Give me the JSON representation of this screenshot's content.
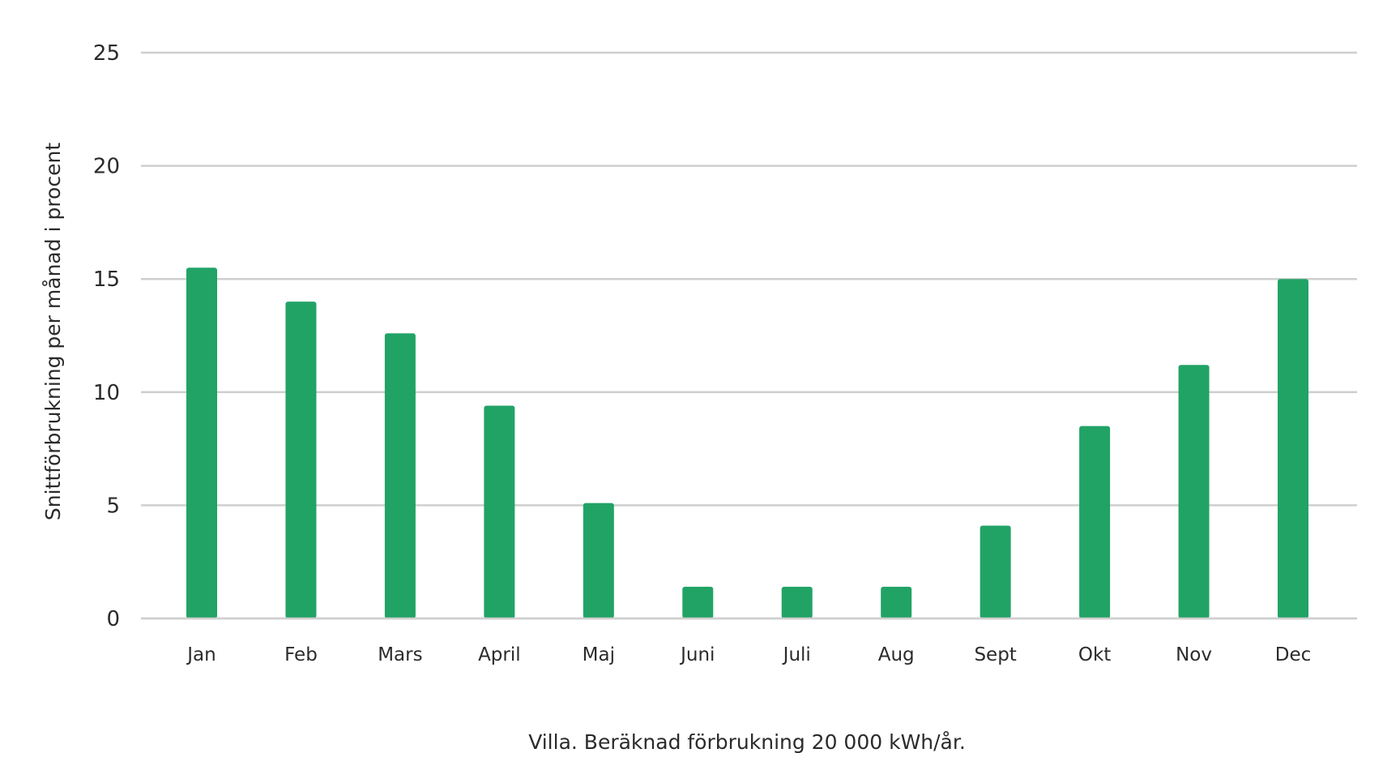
{
  "chart_data": {
    "type": "bar",
    "categories": [
      "Jan",
      "Feb",
      "Mars",
      "April",
      "Maj",
      "Juni",
      "Juli",
      "Aug",
      "Sept",
      "Okt",
      "Nov",
      "Dec"
    ],
    "series": [
      {
        "values": [
          15.5,
          14.0,
          12.6,
          9.4,
          5.1,
          1.4,
          1.4,
          1.4,
          4.1,
          8.5,
          11.2,
          15.0
        ]
      }
    ],
    "xlabel": "Villa. Beräknad förbrukning 20 000 kWh/år.",
    "ylabel": "Snittförbrukning per månad i procent",
    "ylim": [
      0,
      25
    ],
    "yticks": [
      0,
      5,
      10,
      15,
      20,
      25
    ],
    "grid": true,
    "legend": "none",
    "bar_color": "#21a366"
  }
}
